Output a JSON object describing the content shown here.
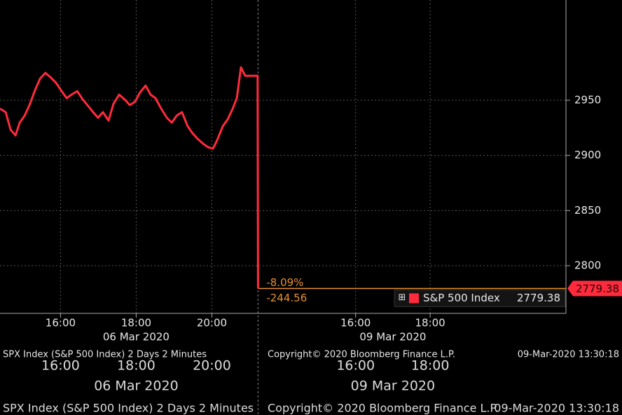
{
  "chart_data": {
    "type": "line",
    "x": [
      14.4,
      14.55,
      14.68,
      14.81,
      14.92,
      15.05,
      15.18,
      15.33,
      15.46,
      15.6,
      15.73,
      15.88,
      16.03,
      16.16,
      16.29,
      16.44,
      16.59,
      16.71,
      16.86,
      16.99,
      17.12,
      17.27,
      17.4,
      17.55,
      17.7,
      17.83,
      17.97,
      18.1,
      18.25,
      18.38,
      18.51,
      18.66,
      18.81,
      18.94,
      19.07,
      19.21,
      19.36,
      19.49,
      19.62,
      19.77,
      19.9,
      20.03,
      20.14,
      20.29,
      20.42,
      20.55,
      20.66,
      20.77,
      20.88,
      20.99,
      21.14,
      21.21,
      21.22
    ],
    "series": [
      {
        "name": "S&P 500 Index",
        "color": "#ff2a3c",
        "values": [
          2942.4,
          2939.2,
          2923.3,
          2918.2,
          2929.7,
          2936.0,
          2945.6,
          2959.5,
          2969.7,
          2974.8,
          2971.0,
          2965.9,
          2958.3,
          2951.9,
          2955.1,
          2958.3,
          2950.6,
          2945.6,
          2939.2,
          2934.1,
          2939.2,
          2931.6,
          2946.8,
          2955.1,
          2950.6,
          2945.6,
          2948.7,
          2957.0,
          2963.3,
          2955.1,
          2951.9,
          2942.4,
          2934.1,
          2929.7,
          2936.0,
          2939.2,
          2926.5,
          2920.1,
          2915.1,
          2910.6,
          2907.4,
          2906.2,
          2913.8,
          2926.5,
          2932.8,
          2942.4,
          2951.9,
          2979.9,
          2972.2,
          2972.2,
          2972.2,
          2972.2,
          2779.38
        ]
      }
    ],
    "xlim": [
      14.4,
      29.36
    ],
    "ylim": [
      2756.8,
      3040.9
    ],
    "yticks": [
      2800,
      2850,
      2900,
      2950
    ],
    "xticks": [
      {
        "value": 16,
        "label": "16:00"
      },
      {
        "value": 18,
        "label": "18:00"
      },
      {
        "value": 20,
        "label": "20:00"
      },
      {
        "value": 23.8,
        "label": "16:00"
      },
      {
        "value": 25.77,
        "label": "18:00"
      }
    ],
    "day_break": 21.22,
    "date_labels": [
      "06 Mar 2020",
      "09 Mar 2020"
    ],
    "annotations": [
      "-8.09%",
      "-244.56"
    ],
    "footer": [
      "SPX Index (S&P 500 Index) 2 Days 2 Minutes",
      "Copyright© 2020 Bloomberg Finance L.P.",
      "09-Mar-2020 13:30:18"
    ],
    "grid": true
  }
}
